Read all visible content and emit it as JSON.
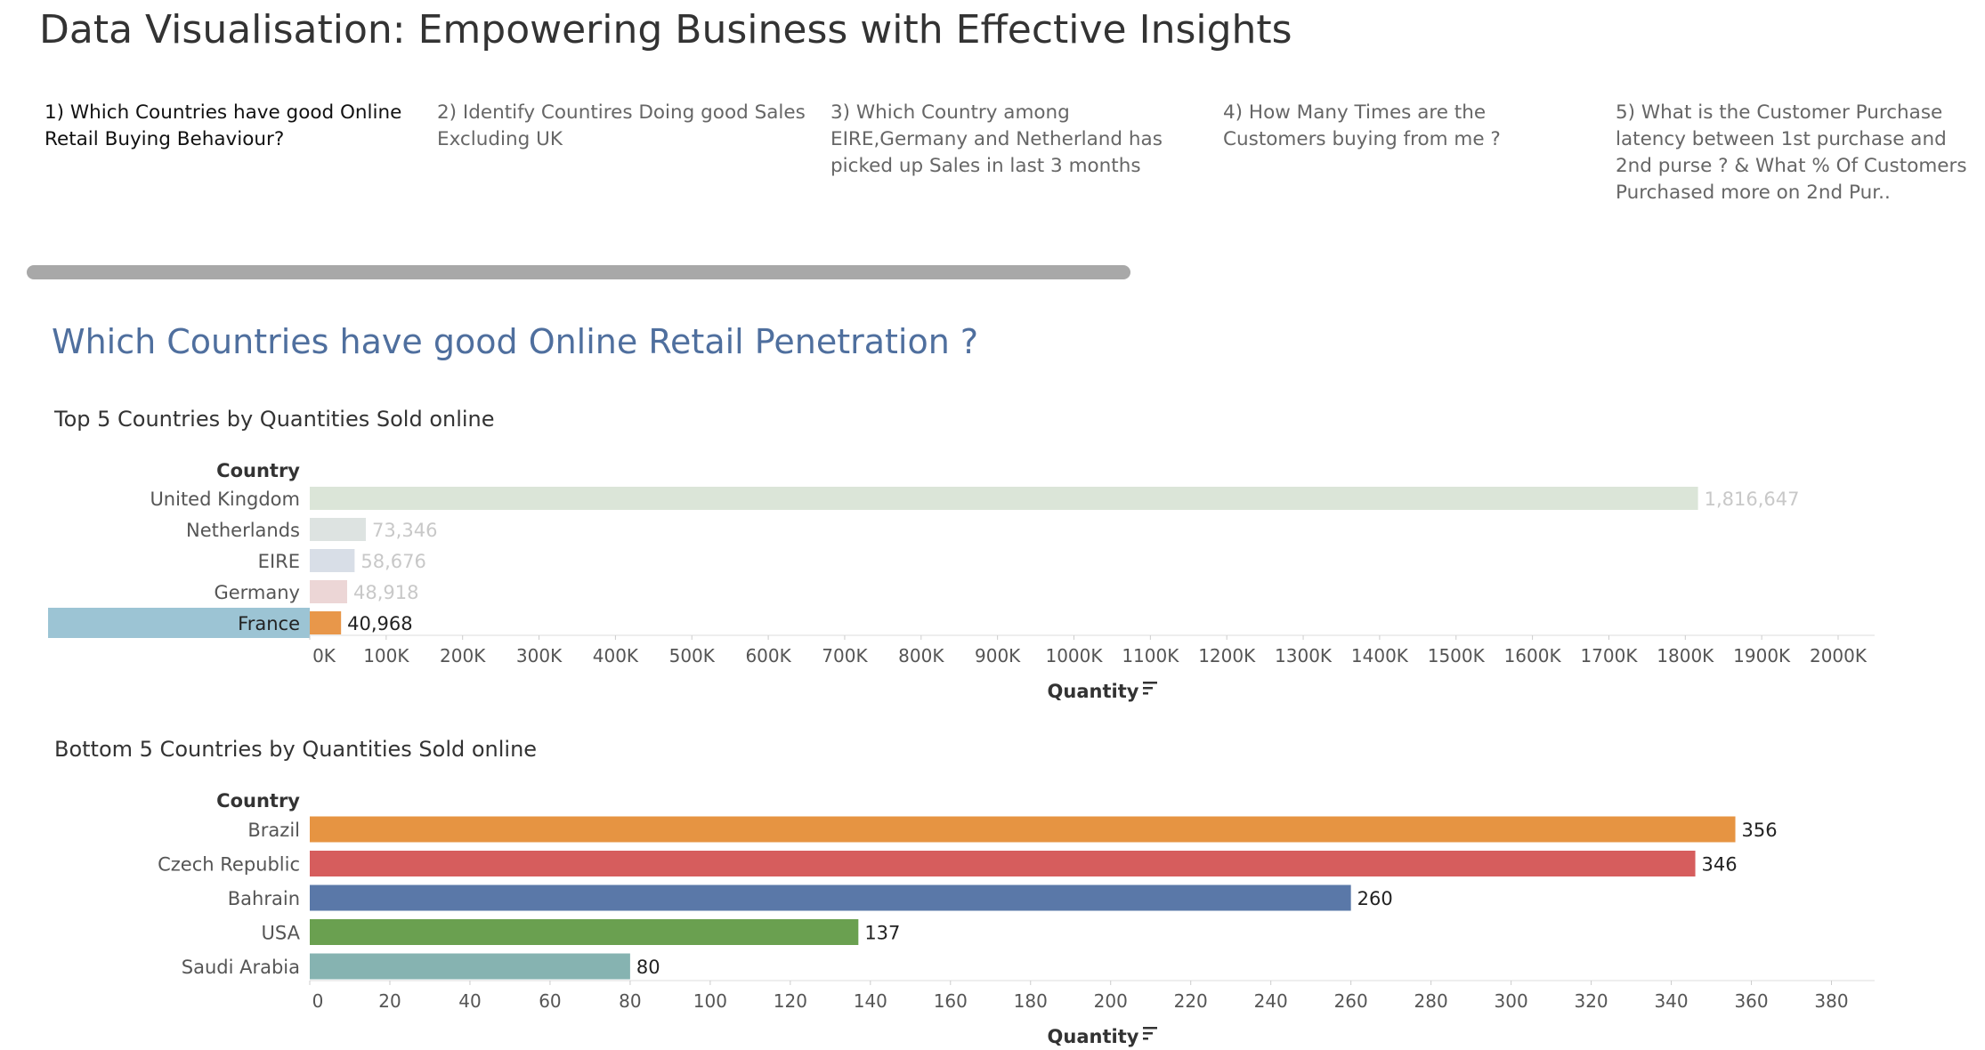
{
  "page": {
    "title": "Data Visualisation: Empowering Business with Effective Insights"
  },
  "tabs": [
    {
      "label": "1) Which Countries have good Online Retail Buying Behaviour?",
      "active": true
    },
    {
      "label": "2) Identify Countires Doing  good Sales Excluding UK",
      "active": false
    },
    {
      "label": "3) Which Country among EIRE,Germany and Netherland has picked up Sales in last 3 months",
      "active": false
    },
    {
      "label": "4) How Many Times are the Customers buying from me ?",
      "active": false
    },
    {
      "label": "5) What is the Customer Purchase latency between 1st purchase and 2nd purse ? & What % Of Customers Purchased more on 2nd Pur..",
      "active": false
    }
  ],
  "section_title": "Which Countries have good Online Retail Penetration ?",
  "chart_data": [
    {
      "type": "bar",
      "orientation": "horizontal",
      "title": "Top 5 Countries by Quantities  Sold online",
      "category_header": "Country",
      "xlabel": "Quantity",
      "categories": [
        "United Kingdom",
        "Netherlands",
        "EIRE",
        "Germany",
        "France"
      ],
      "values": [
        1816647,
        73346,
        58676,
        48918,
        40968
      ],
      "value_labels": [
        "1,816,647",
        "73,346",
        "58,676",
        "48,918",
        "40,968"
      ],
      "colors": [
        "#dbe5d8",
        "#dde3e1",
        "#d8dee7",
        "#ecd6d6",
        "#e8974a"
      ],
      "label_colors": [
        "#c8c8c8",
        "#c8c8c8",
        "#c8c8c8",
        "#c8c8c8",
        "#222222"
      ],
      "highlighted": "France",
      "highlight_color": "#9cc4d4",
      "xlim": [
        0,
        2000000
      ],
      "ticks": [
        0,
        100000,
        200000,
        300000,
        400000,
        500000,
        600000,
        700000,
        800000,
        900000,
        1000000,
        1100000,
        1200000,
        1300000,
        1400000,
        1500000,
        1600000,
        1700000,
        1800000,
        1900000,
        2000000
      ],
      "tick_labels": [
        "0K",
        "100K",
        "200K",
        "300K",
        "400K",
        "500K",
        "600K",
        "700K",
        "800K",
        "900K",
        "1000K",
        "1100K",
        "1200K",
        "1300K",
        "1400K",
        "1500K",
        "1600K",
        "1700K",
        "1800K",
        "1900K",
        "2000K"
      ],
      "sort_icon": "sort-descending-icon"
    },
    {
      "type": "bar",
      "orientation": "horizontal",
      "title": "Bottom 5 Countries by Quantities  Sold online",
      "category_header": "Country",
      "xlabel": "Quantity",
      "categories": [
        "Brazil",
        "Czech Republic",
        "Bahrain",
        "USA",
        "Saudi Arabia"
      ],
      "values": [
        356,
        346,
        260,
        137,
        80
      ],
      "value_labels": [
        "356",
        "346",
        "260",
        "137",
        "80"
      ],
      "colors": [
        "#e69442",
        "#d65d5d",
        "#5a78a8",
        "#6aa050",
        "#86b3b1"
      ],
      "label_colors": [
        "#222222",
        "#222222",
        "#222222",
        "#222222",
        "#222222"
      ],
      "xlim": [
        0,
        385
      ],
      "ticks": [
        0,
        20,
        40,
        60,
        80,
        100,
        120,
        140,
        160,
        180,
        200,
        220,
        240,
        260,
        280,
        300,
        320,
        340,
        360,
        380
      ],
      "tick_labels": [
        "0",
        "20",
        "40",
        "60",
        "80",
        "100",
        "120",
        "140",
        "160",
        "180",
        "200",
        "220",
        "240",
        "260",
        "280",
        "300",
        "320",
        "340",
        "360",
        "380"
      ],
      "sort_icon": "sort-descending-icon"
    }
  ]
}
